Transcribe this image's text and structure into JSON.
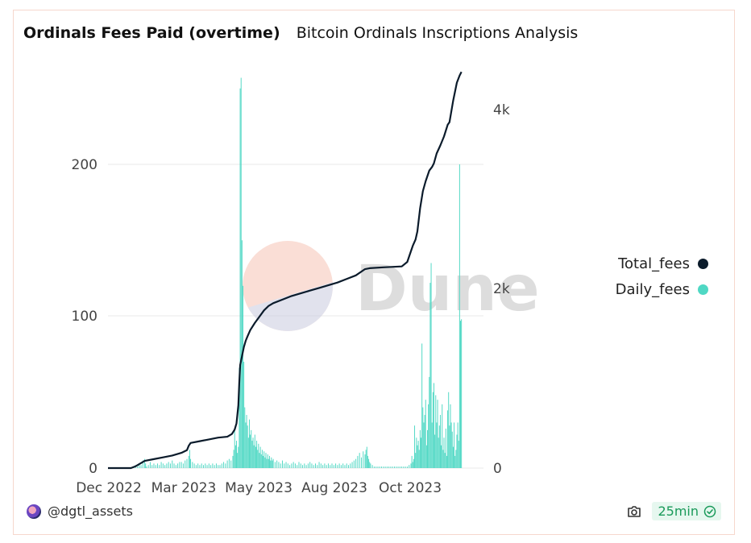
{
  "header": {
    "title": "Ordinals Fees Paid (overtime)",
    "subtitle": "Bitcoin Ordinals Inscriptions Analysis"
  },
  "watermark": {
    "text": "Dune"
  },
  "footer": {
    "user": "@dgtl_assets",
    "refresh": "25min"
  },
  "colors": {
    "total": "#0b1b2b",
    "daily": "#4fd8c4",
    "grid": "#e9e9e9",
    "text": "#444444"
  },
  "chart_data": {
    "type": "bar+line",
    "title": "Ordinals Fees Paid (overtime)",
    "x_tick_labels": [
      "Dec 2022",
      "Mar 2023",
      "May 2023",
      "Aug 2023",
      "Oct 2023"
    ],
    "x_tick_days": [
      0,
      90,
      151,
      243,
      304
    ],
    "x_range_days": [
      0,
      409
    ],
    "y_left": {
      "ticks": [
        0,
        100,
        200
      ],
      "tick_labels": [
        "0",
        "100",
        "200"
      ],
      "range": [
        0,
        265
      ]
    },
    "y_right": {
      "ticks": [
        0,
        2000,
        4000
      ],
      "tick_labels": [
        "0",
        "2k",
        "4k"
      ],
      "range": [
        0,
        4600
      ]
    },
    "legend": [
      {
        "name": "Total_fees",
        "color": "#0b1b2b"
      },
      {
        "name": "Daily_fees",
        "color": "#4fd8c4"
      }
    ],
    "series": [
      {
        "name": "Daily_fees",
        "type": "bar",
        "axis": "left",
        "points": [
          [
            28,
            1
          ],
          [
            30,
            2
          ],
          [
            32,
            1
          ],
          [
            34,
            3
          ],
          [
            36,
            2
          ],
          [
            38,
            5
          ],
          [
            40,
            6
          ],
          [
            41,
            3
          ],
          [
            42,
            1
          ],
          [
            44,
            2
          ],
          [
            46,
            4
          ],
          [
            48,
            2
          ],
          [
            50,
            3
          ],
          [
            52,
            2
          ],
          [
            54,
            3
          ],
          [
            56,
            2
          ],
          [
            58,
            4
          ],
          [
            60,
            3
          ],
          [
            62,
            2
          ],
          [
            64,
            3
          ],
          [
            66,
            4
          ],
          [
            68,
            3
          ],
          [
            70,
            5
          ],
          [
            72,
            3
          ],
          [
            74,
            2
          ],
          [
            76,
            3
          ],
          [
            78,
            4
          ],
          [
            80,
            4
          ],
          [
            82,
            3
          ],
          [
            84,
            5
          ],
          [
            86,
            6
          ],
          [
            88,
            8
          ],
          [
            89,
            12
          ],
          [
            90,
            6
          ],
          [
            92,
            4
          ],
          [
            94,
            3
          ],
          [
            96,
            2
          ],
          [
            98,
            3
          ],
          [
            100,
            2
          ],
          [
            102,
            3
          ],
          [
            104,
            2
          ],
          [
            106,
            3
          ],
          [
            108,
            2
          ],
          [
            110,
            3
          ],
          [
            112,
            2
          ],
          [
            114,
            3
          ],
          [
            116,
            2
          ],
          [
            118,
            3
          ],
          [
            120,
            2
          ],
          [
            122,
            2
          ],
          [
            124,
            3
          ],
          [
            126,
            4
          ],
          [
            128,
            3
          ],
          [
            130,
            5
          ],
          [
            132,
            6
          ],
          [
            134,
            5
          ],
          [
            136,
            8
          ],
          [
            137,
            12
          ],
          [
            138,
            25
          ],
          [
            139,
            15
          ],
          [
            140,
            18
          ],
          [
            141,
            10
          ],
          [
            142,
            14
          ],
          [
            143,
            66
          ],
          [
            144,
            250
          ],
          [
            145,
            257
          ],
          [
            146,
            150
          ],
          [
            147,
            120
          ],
          [
            148,
            70
          ],
          [
            149,
            40
          ],
          [
            150,
            30
          ],
          [
            151,
            35
          ],
          [
            152,
            28
          ],
          [
            153,
            20
          ],
          [
            154,
            32
          ],
          [
            155,
            22
          ],
          [
            156,
            25
          ],
          [
            157,
            18
          ],
          [
            158,
            20
          ],
          [
            159,
            15
          ],
          [
            160,
            22
          ],
          [
            161,
            14
          ],
          [
            162,
            18
          ],
          [
            163,
            12
          ],
          [
            164,
            16
          ],
          [
            165,
            10
          ],
          [
            166,
            14
          ],
          [
            167,
            9
          ],
          [
            168,
            12
          ],
          [
            169,
            8
          ],
          [
            170,
            11
          ],
          [
            171,
            7
          ],
          [
            172,
            10
          ],
          [
            173,
            6
          ],
          [
            174,
            9
          ],
          [
            175,
            6
          ],
          [
            176,
            8
          ],
          [
            177,
            5
          ],
          [
            178,
            7
          ],
          [
            179,
            5
          ],
          [
            180,
            6
          ],
          [
            182,
            4
          ],
          [
            184,
            5
          ],
          [
            186,
            4
          ],
          [
            188,
            3
          ],
          [
            190,
            5
          ],
          [
            192,
            3
          ],
          [
            194,
            4
          ],
          [
            196,
            3
          ],
          [
            198,
            2
          ],
          [
            200,
            3
          ],
          [
            202,
            4
          ],
          [
            204,
            3
          ],
          [
            206,
            2
          ],
          [
            208,
            4
          ],
          [
            210,
            3
          ],
          [
            212,
            2
          ],
          [
            214,
            3
          ],
          [
            216,
            2
          ],
          [
            218,
            3
          ],
          [
            220,
            4
          ],
          [
            222,
            3
          ],
          [
            224,
            2
          ],
          [
            226,
            3
          ],
          [
            228,
            2
          ],
          [
            230,
            4
          ],
          [
            232,
            3
          ],
          [
            234,
            2
          ],
          [
            236,
            3
          ],
          [
            238,
            2
          ],
          [
            240,
            3
          ],
          [
            242,
            2
          ],
          [
            244,
            3
          ],
          [
            246,
            2
          ],
          [
            248,
            3
          ],
          [
            250,
            2
          ],
          [
            252,
            3
          ],
          [
            254,
            2
          ],
          [
            256,
            3
          ],
          [
            258,
            2
          ],
          [
            260,
            3
          ],
          [
            262,
            2
          ],
          [
            264,
            3
          ],
          [
            266,
            4
          ],
          [
            268,
            5
          ],
          [
            270,
            6
          ],
          [
            272,
            8
          ],
          [
            274,
            10
          ],
          [
            276,
            7
          ],
          [
            278,
            11
          ],
          [
            280,
            9
          ],
          [
            281,
            12
          ],
          [
            282,
            14
          ],
          [
            283,
            8
          ],
          [
            284,
            6
          ],
          [
            285,
            4
          ],
          [
            286,
            3
          ],
          [
            288,
            2
          ],
          [
            290,
            1
          ],
          [
            292,
            1
          ],
          [
            294,
            1
          ],
          [
            296,
            1
          ],
          [
            298,
            1
          ],
          [
            300,
            1
          ],
          [
            302,
            1
          ],
          [
            304,
            1
          ],
          [
            306,
            1
          ],
          [
            308,
            1
          ],
          [
            310,
            1
          ],
          [
            312,
            1
          ],
          [
            314,
            1
          ],
          [
            316,
            1
          ],
          [
            318,
            1
          ],
          [
            320,
            1
          ],
          [
            322,
            1
          ],
          [
            324,
            1
          ],
          [
            326,
            1
          ],
          [
            328,
            2
          ],
          [
            330,
            3
          ],
          [
            331,
            8
          ],
          [
            332,
            4
          ],
          [
            333,
            6
          ],
          [
            334,
            28
          ],
          [
            335,
            10
          ],
          [
            336,
            20
          ],
          [
            337,
            15
          ],
          [
            338,
            18
          ],
          [
            339,
            12
          ],
          [
            340,
            25
          ],
          [
            341,
            20
          ],
          [
            342,
            82
          ],
          [
            343,
            40
          ],
          [
            344,
            30
          ],
          [
            345,
            35
          ],
          [
            346,
            45
          ],
          [
            347,
            15
          ],
          [
            348,
            25
          ],
          [
            349,
            42
          ],
          [
            350,
            60
          ],
          [
            351,
            122
          ],
          [
            352,
            135
          ],
          [
            353,
            30
          ],
          [
            354,
            50
          ],
          [
            355,
            56
          ],
          [
            356,
            22
          ],
          [
            357,
            48
          ],
          [
            358,
            30
          ],
          [
            359,
            45
          ],
          [
            360,
            20
          ],
          [
            361,
            28
          ],
          [
            362,
            35
          ],
          [
            363,
            15
          ],
          [
            364,
            42
          ],
          [
            365,
            12
          ],
          [
            366,
            20
          ],
          [
            367,
            10
          ],
          [
            368,
            26
          ],
          [
            369,
            8
          ],
          [
            370,
            38
          ],
          [
            371,
            50
          ],
          [
            372,
            28
          ],
          [
            373,
            42
          ],
          [
            374,
            30
          ],
          [
            375,
            24
          ],
          [
            376,
            14
          ],
          [
            377,
            30
          ],
          [
            378,
            8
          ],
          [
            379,
            12
          ],
          [
            380,
            22
          ],
          [
            381,
            30
          ],
          [
            382,
            18
          ],
          [
            383,
            200
          ],
          [
            384,
            97
          ],
          [
            385,
            98
          ]
        ]
      },
      {
        "name": "Total_fees",
        "type": "line",
        "axis": "right",
        "points": [
          [
            0,
            0
          ],
          [
            25,
            0
          ],
          [
            30,
            20
          ],
          [
            35,
            50
          ],
          [
            40,
            80
          ],
          [
            50,
            100
          ],
          [
            60,
            120
          ],
          [
            70,
            140
          ],
          [
            80,
            170
          ],
          [
            86,
            200
          ],
          [
            88,
            250
          ],
          [
            90,
            280
          ],
          [
            100,
            300
          ],
          [
            110,
            320
          ],
          [
            120,
            340
          ],
          [
            130,
            350
          ],
          [
            135,
            380
          ],
          [
            138,
            430
          ],
          [
            140,
            500
          ],
          [
            142,
            700
          ],
          [
            143,
            950
          ],
          [
            144,
            1150
          ],
          [
            146,
            1250
          ],
          [
            148,
            1350
          ],
          [
            150,
            1420
          ],
          [
            152,
            1470
          ],
          [
            155,
            1540
          ],
          [
            160,
            1620
          ],
          [
            165,
            1690
          ],
          [
            170,
            1760
          ],
          [
            175,
            1810
          ],
          [
            180,
            1840
          ],
          [
            190,
            1880
          ],
          [
            200,
            1920
          ],
          [
            210,
            1950
          ],
          [
            220,
            1980
          ],
          [
            230,
            2010
          ],
          [
            240,
            2040
          ],
          [
            250,
            2070
          ],
          [
            260,
            2110
          ],
          [
            270,
            2150
          ],
          [
            280,
            2220
          ],
          [
            285,
            2230
          ],
          [
            300,
            2240
          ],
          [
            320,
            2250
          ],
          [
            326,
            2300
          ],
          [
            330,
            2420
          ],
          [
            332,
            2480
          ],
          [
            335,
            2550
          ],
          [
            337,
            2640
          ],
          [
            340,
            2900
          ],
          [
            343,
            3090
          ],
          [
            346,
            3200
          ],
          [
            350,
            3320
          ],
          [
            353,
            3360
          ],
          [
            355,
            3400
          ],
          [
            358,
            3510
          ],
          [
            362,
            3600
          ],
          [
            366,
            3700
          ],
          [
            370,
            3830
          ],
          [
            372,
            3860
          ],
          [
            376,
            4100
          ],
          [
            380,
            4300
          ],
          [
            383,
            4380
          ],
          [
            385,
            4420
          ]
        ]
      }
    ]
  }
}
